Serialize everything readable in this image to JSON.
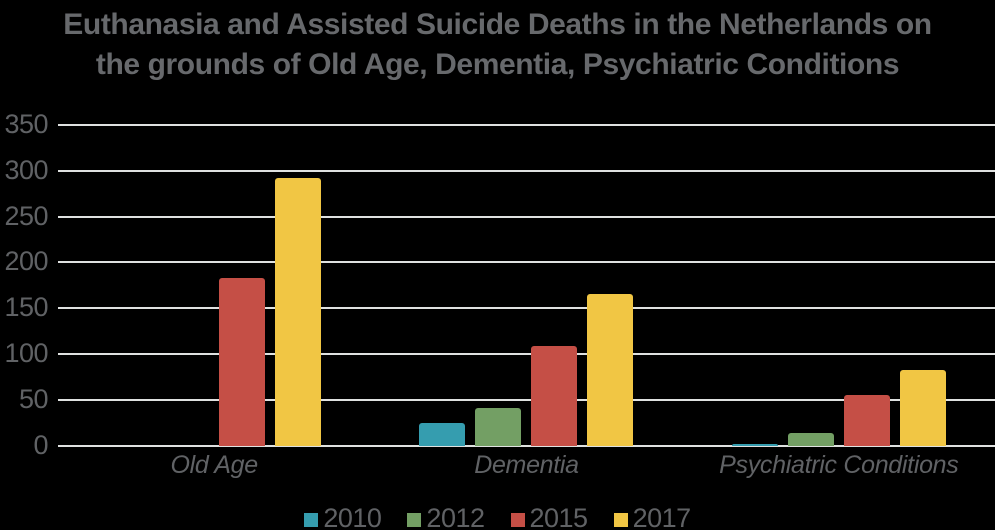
{
  "title": {
    "line1": "Euthanasia and Assisted Suicide Deaths in the Netherlands on",
    "line2": "the grounds of Old Age, Dementia, Psychiatric Conditions"
  },
  "chart_data": {
    "type": "bar",
    "title": "Euthanasia and Assisted Suicide Deaths in the Netherlands on the grounds of Old Age, Dementia, Psychiatric Conditions",
    "categories": [
      "Old Age",
      "Dementia",
      "Psychiatric Conditions"
    ],
    "series": [
      {
        "name": "2010",
        "color": "#359daf",
        "values": [
          0,
          25,
          2
        ]
      },
      {
        "name": "2012",
        "color": "#739f64",
        "values": [
          0,
          42,
          14
        ]
      },
      {
        "name": "2015",
        "color": "#c54f46",
        "values": [
          183,
          109,
          56
        ]
      },
      {
        "name": "2017",
        "color": "#f1c644",
        "values": [
          293,
          166,
          83
        ]
      }
    ],
    "xlabel": "",
    "ylabel": "",
    "ylim": [
      0,
      350
    ],
    "yticks": [
      0,
      50,
      100,
      150,
      200,
      250,
      300,
      350
    ],
    "grid": "horizontal",
    "legend_position": "bottom"
  },
  "colors": {
    "background": "#000000",
    "text": "#606265",
    "title_text": "#67696c",
    "gridline": "#dfe1e0"
  }
}
